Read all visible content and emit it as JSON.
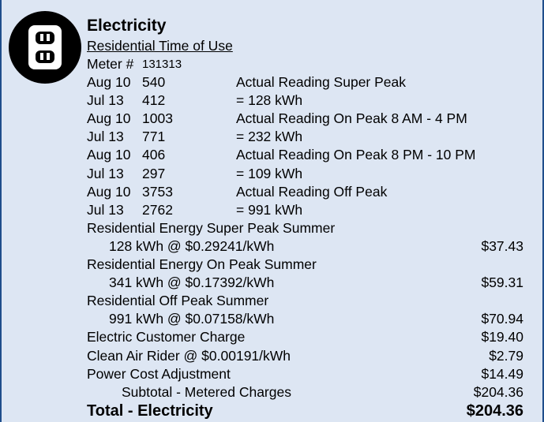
{
  "title": "Electricity",
  "subtitle": "Residential Time of Use",
  "meter_label": "Meter #",
  "meter_number": "131313",
  "readings": [
    {
      "date": "Aug 10",
      "reading": "540",
      "description": "Actual Reading Super Peak"
    },
    {
      "date": "Jul 13",
      "reading": "412",
      "description": "= 128 kWh"
    },
    {
      "date": "Aug 10",
      "reading": "1003",
      "description": "Actual Reading On Peak 8 AM - 4 PM"
    },
    {
      "date": "Jul 13",
      "reading": "771",
      "description": "= 232 kWh"
    },
    {
      "date": "Aug 10",
      "reading": "406",
      "description": "Actual Reading On Peak 8 PM - 10 PM"
    },
    {
      "date": "Jul 13",
      "reading": "297",
      "description": "= 109 kWh"
    },
    {
      "date": "Aug 10",
      "reading": "3753",
      "description": "Actual Reading Off Peak"
    },
    {
      "date": "Jul 13",
      "reading": "2762",
      "description": "= 991 kWh"
    }
  ],
  "rated_charges": [
    {
      "name": "Residential Energy Super Peak Summer",
      "rate": "128 kWh @ $0.29241/kWh",
      "amount": "$37.43"
    },
    {
      "name": "Residential Energy On Peak Summer",
      "rate": "341 kWh @ $0.17392/kWh",
      "amount": "$59.31"
    },
    {
      "name": "Residential Off Peak Summer",
      "rate": "991 kWh @ $0.07158/kWh",
      "amount": "$70.94"
    }
  ],
  "other_charges": [
    {
      "label": "Electric Customer Charge",
      "amount": "$19.40"
    },
    {
      "label": "Clean Air Rider @ $0.00191/kWh",
      "amount": "$2.79"
    },
    {
      "label": "Power Cost Adjustment",
      "amount": "$14.49"
    }
  ],
  "subtotal": {
    "label": "Subtotal - Metered Charges",
    "amount": "$204.36"
  },
  "total": {
    "label": "Total - Electricity",
    "amount": "$204.36"
  }
}
